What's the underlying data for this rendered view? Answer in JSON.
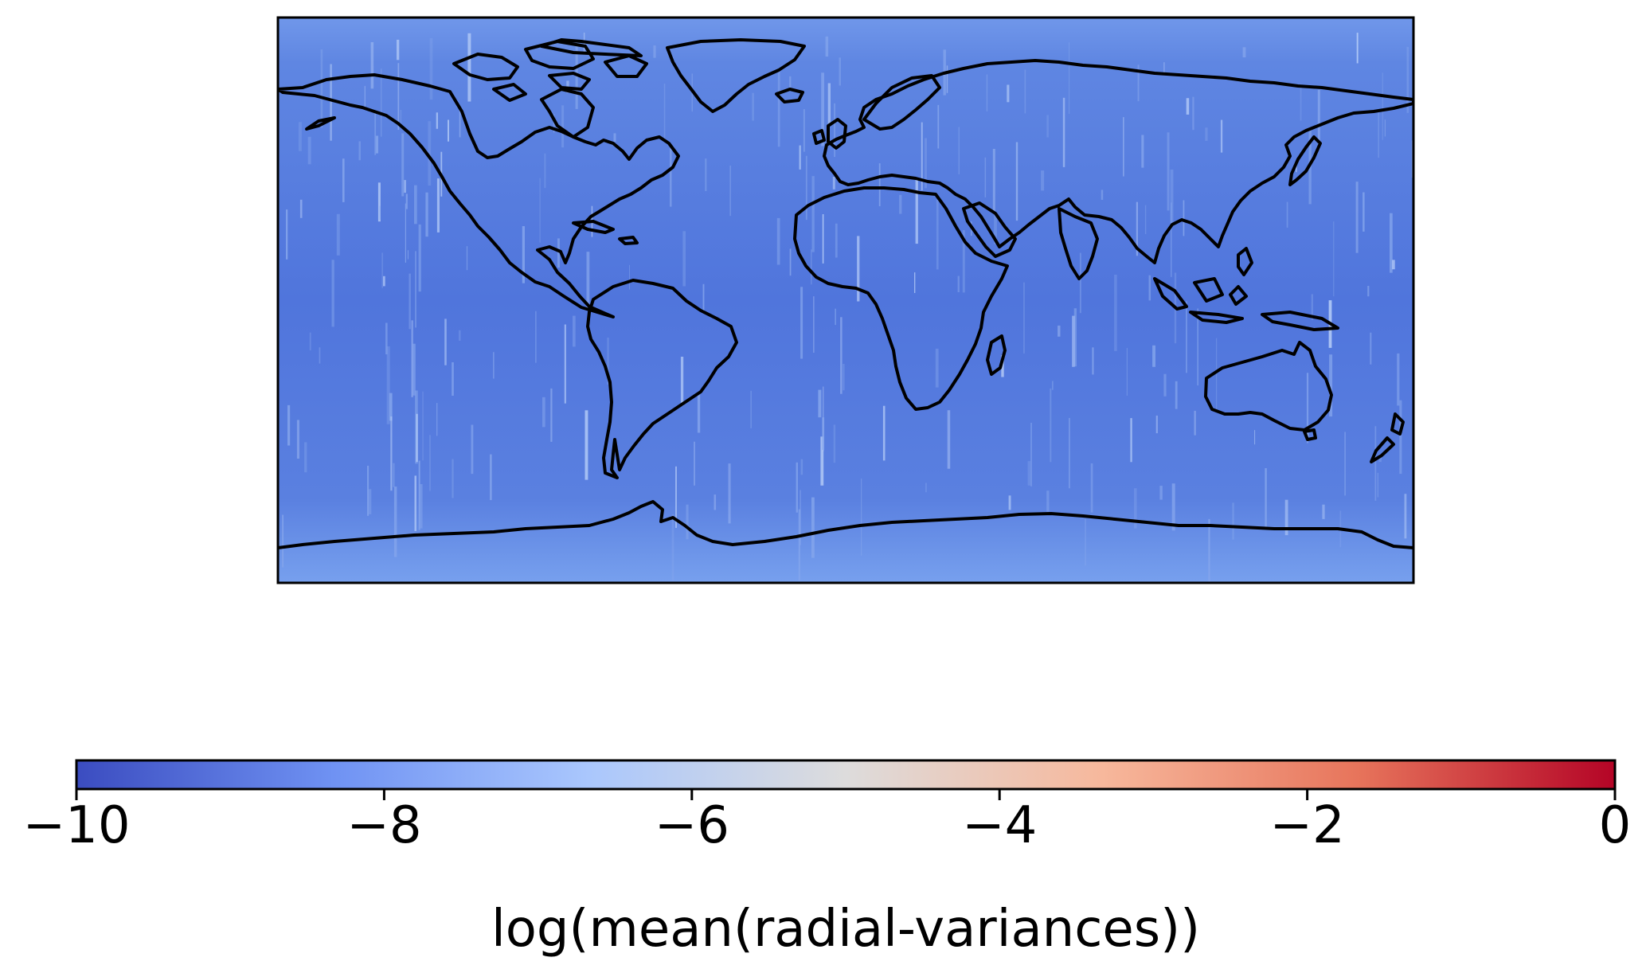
{
  "map": {
    "projection": "plate-carree",
    "field_color": "#5b7fe0",
    "coastline_color": "#000000",
    "coastlines": "world"
  },
  "colorbar": {
    "label": "log(mean(radial-variances))",
    "colormap": "coolwarm",
    "range": [
      -10,
      0
    ],
    "ticks": [
      -10,
      -8,
      -6,
      -4,
      -2,
      0
    ],
    "tick_labels": [
      "−10",
      "−8",
      "−6",
      "−4",
      "−2",
      "0"
    ],
    "orientation": "horizontal",
    "stops": [
      "#3b4cc0",
      "#6f92f3",
      "#aac7fd",
      "#dddcdc",
      "#f7b89c",
      "#e7745b",
      "#b40426"
    ]
  }
}
